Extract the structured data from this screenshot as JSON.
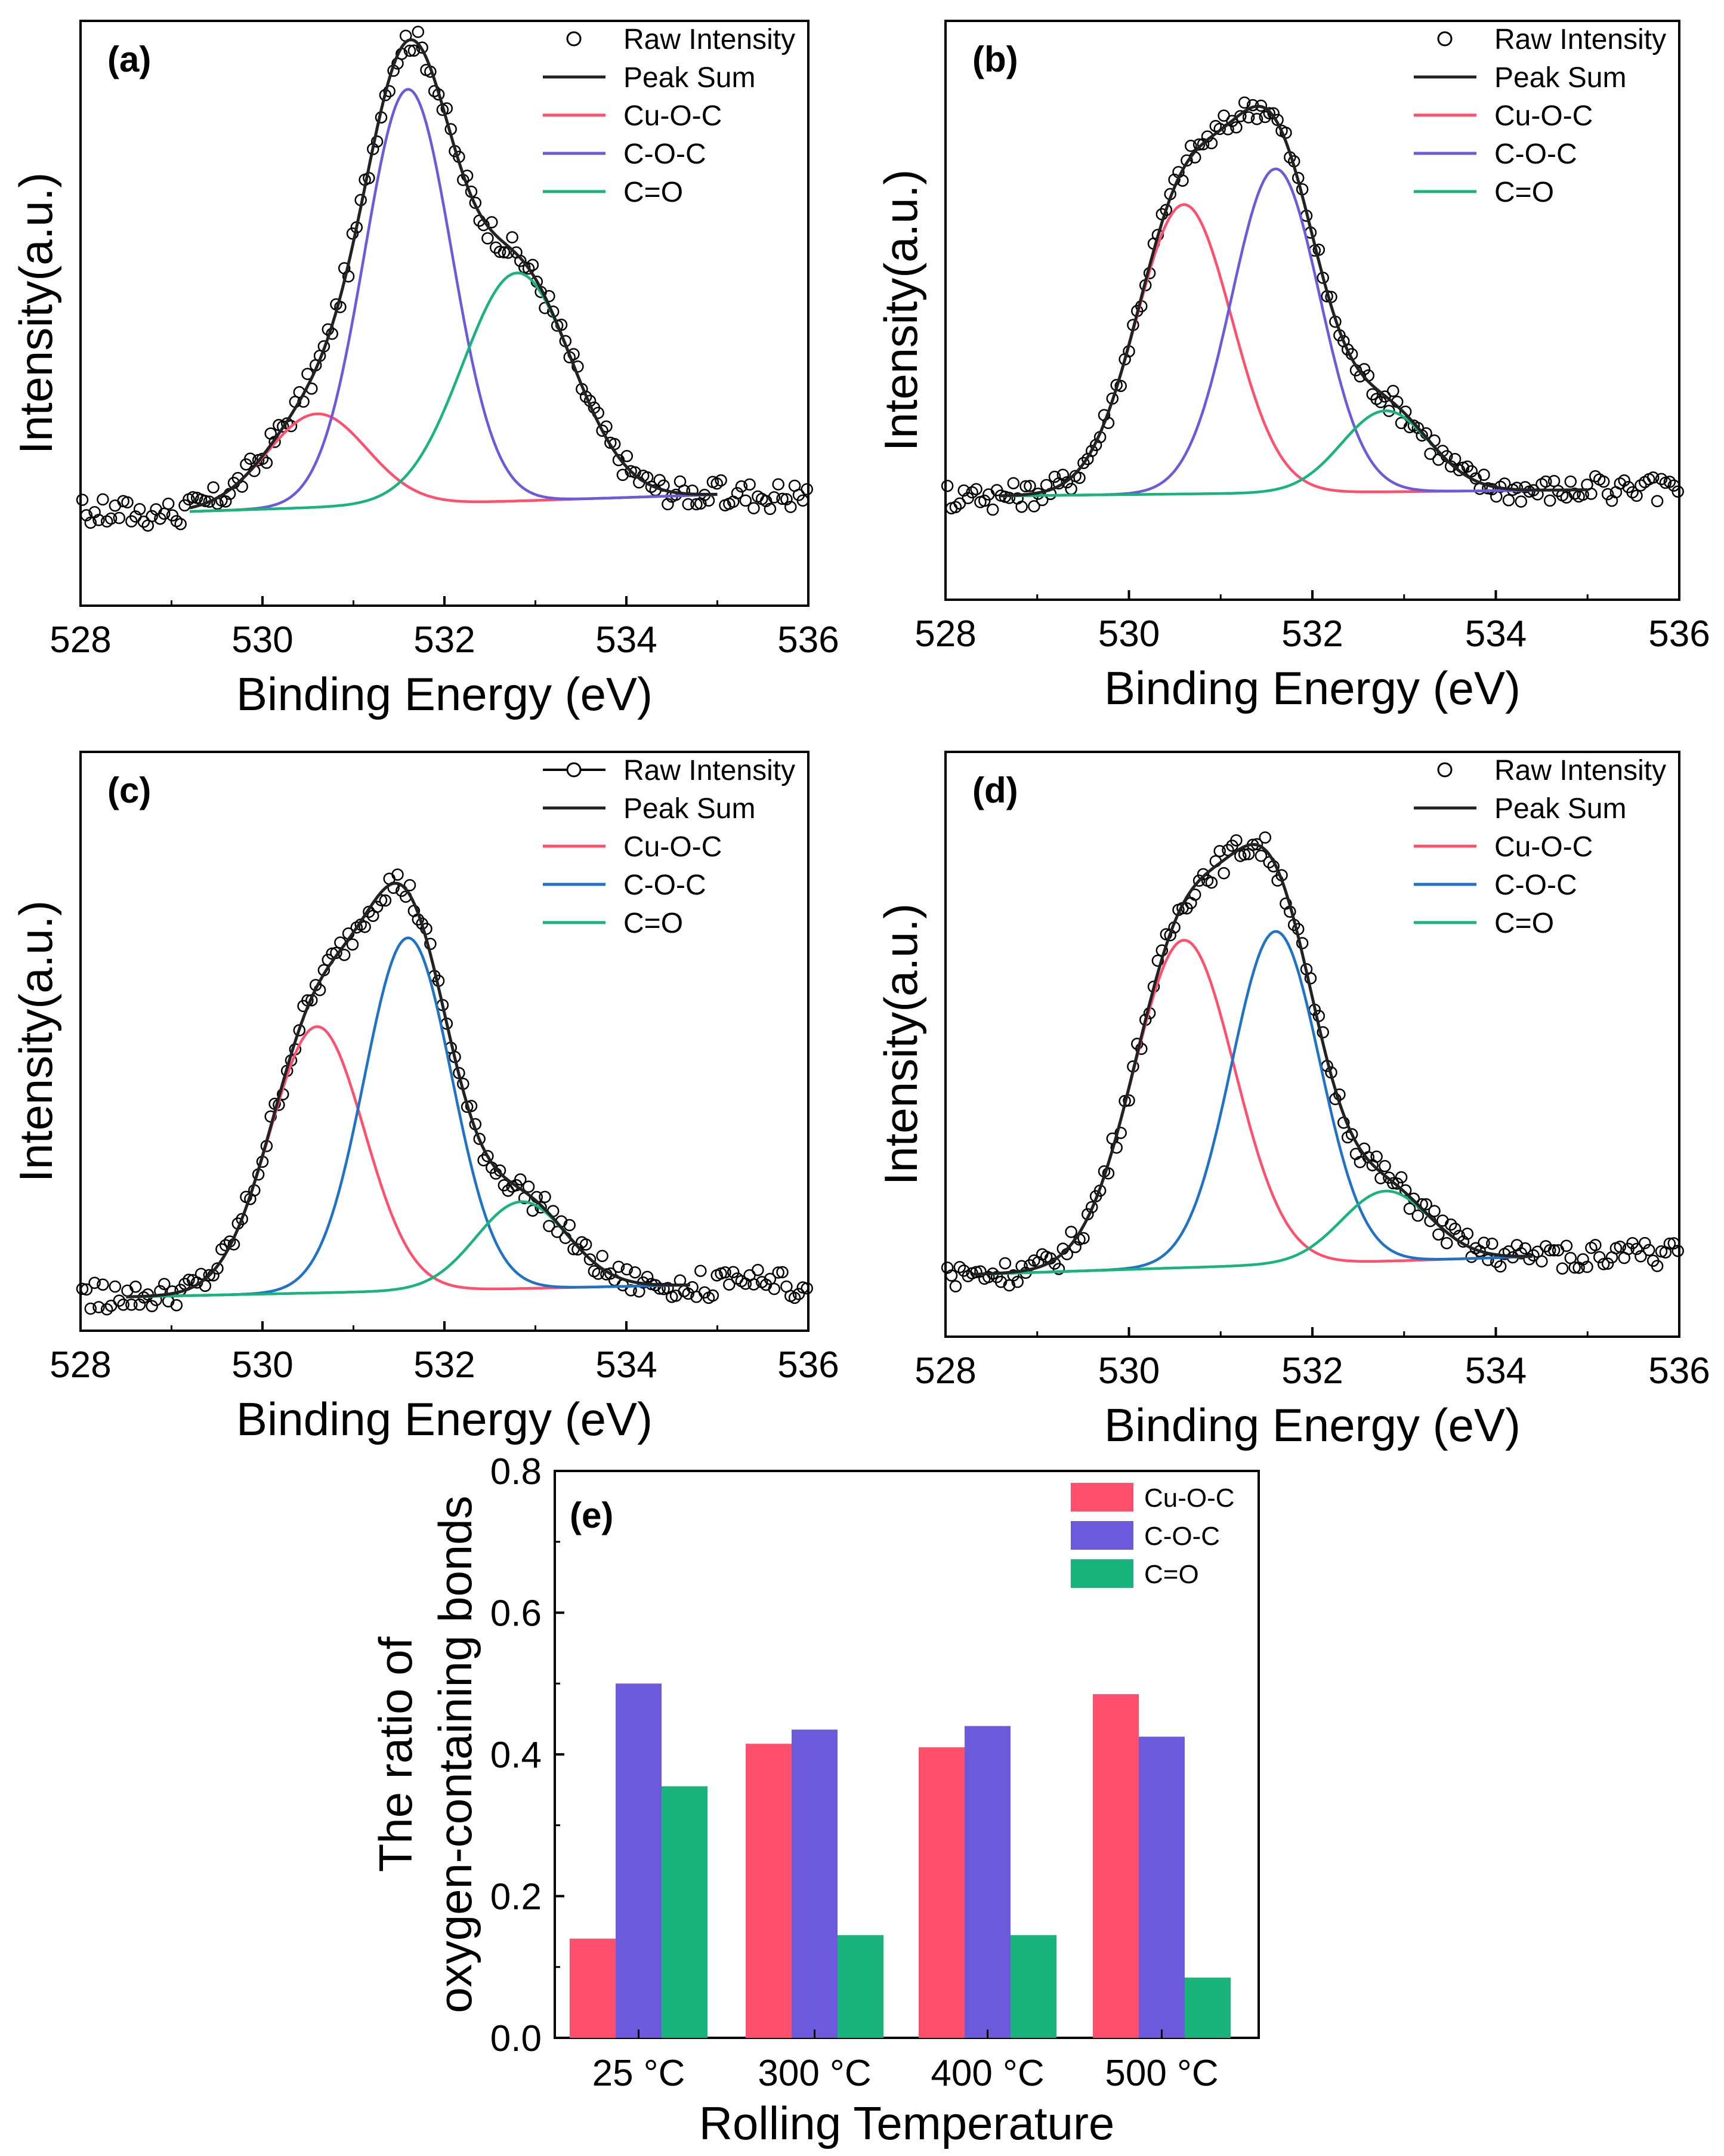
{
  "figure": {
    "colors": {
      "raw": "#000000",
      "peak_sum": "#222222",
      "cu_o_c": "#ff4f6d",
      "c_o_c_ab": "#6b5bdc",
      "c_o_c_cd": "#1f73c6",
      "c_eq_o": "#19b37c"
    }
  },
  "chart_data": [
    {
      "id": "a",
      "type": "line",
      "panel_label": "(a)",
      "xlabel": "Binding Energy (eV)",
      "ylabel": "Intensity(a.u.)",
      "xlim": [
        528,
        536
      ],
      "ylim": [
        0,
        1.0
      ],
      "xticks": [
        528,
        530,
        532,
        534,
        536
      ],
      "legend": [
        "Raw Intensity",
        "Peak Sum",
        "Cu-O-C",
        "C-O-C",
        "C=O"
      ],
      "legend_position": "top-right",
      "raw_range": [
        528,
        536
      ],
      "fit_range": [
        529.2,
        535.0
      ],
      "baseline": {
        "at_529": 0.16,
        "at_535": 0.19
      },
      "components": [
        {
          "name": "Cu-O-C",
          "center": 530.6,
          "amplitude": 0.16,
          "sigma": 0.55
        },
        {
          "name": "C-O-C",
          "center": 531.6,
          "amplitude": 0.71,
          "sigma": 0.48
        },
        {
          "name": "C=O",
          "center": 532.8,
          "amplitude": 0.39,
          "sigma": 0.6
        }
      ]
    },
    {
      "id": "b",
      "type": "line",
      "panel_label": "(b)",
      "xlabel": "Binding Energy (eV)",
      "ylabel": "Intensity(a.u.)",
      "xlim": [
        528,
        536
      ],
      "ylim": [
        0,
        1.0
      ],
      "xticks": [
        528,
        530,
        532,
        534,
        536
      ],
      "legend": [
        "Raw Intensity",
        "Peak Sum",
        "Cu-O-C",
        "C-O-C",
        "C=O"
      ],
      "legend_position": "top-right",
      "raw_range": [
        528,
        536
      ],
      "fit_range": [
        528.6,
        535.0
      ],
      "baseline": {
        "at_529": 0.18,
        "at_535": 0.19
      },
      "components": [
        {
          "name": "Cu-O-C",
          "center": 530.6,
          "amplitude": 0.5,
          "sigma": 0.52
        },
        {
          "name": "C-O-C",
          "center": 531.6,
          "amplitude": 0.56,
          "sigma": 0.48
        },
        {
          "name": "C=O",
          "center": 532.8,
          "amplitude": 0.14,
          "sigma": 0.48
        }
      ]
    },
    {
      "id": "c",
      "type": "line",
      "panel_label": "(c)",
      "xlabel": "Binding Energy (eV)",
      "ylabel": "Intensity(a.u.)",
      "xlim": [
        528,
        536
      ],
      "ylim": [
        0,
        1.0
      ],
      "xticks": [
        528,
        530,
        532,
        534,
        536
      ],
      "legend": [
        "Raw Intensity",
        "Peak Sum",
        "Cu-O-C",
        "C-O-C",
        "C=O"
      ],
      "legend_position": "top-right",
      "raw_range": [
        528,
        536
      ],
      "fit_range": [
        528.5,
        534.7
      ],
      "baseline": {
        "at_529": 0.06,
        "at_535": 0.08
      },
      "components": [
        {
          "name": "Cu-O-C",
          "center": 530.6,
          "amplitude": 0.46,
          "sigma": 0.52
        },
        {
          "name": "C-O-C",
          "center": 531.6,
          "amplitude": 0.61,
          "sigma": 0.48
        },
        {
          "name": "C=O",
          "center": 532.85,
          "amplitude": 0.15,
          "sigma": 0.5
        }
      ]
    },
    {
      "id": "d",
      "type": "line",
      "panel_label": "(d)",
      "xlabel": "Binding Energy (eV)",
      "ylabel": "Intensity(a.u.)",
      "xlim": [
        528,
        536
      ],
      "ylim": [
        0,
        1.0
      ],
      "xticks": [
        528,
        530,
        532,
        534,
        536
      ],
      "legend": [
        "Raw Intensity",
        "Peak Sum",
        "Cu-O-C",
        "C-O-C",
        "C=O"
      ],
      "legend_position": "top-right",
      "raw_range": [
        528,
        536
      ],
      "fit_range": [
        528.3,
        534.4
      ],
      "baseline": {
        "at_529": 0.11,
        "at_535": 0.14
      },
      "components": [
        {
          "name": "Cu-O-C",
          "center": 530.6,
          "amplitude": 0.56,
          "sigma": 0.55
        },
        {
          "name": "C-O-C",
          "center": 531.6,
          "amplitude": 0.57,
          "sigma": 0.48
        },
        {
          "name": "C=O",
          "center": 532.8,
          "amplitude": 0.12,
          "sigma": 0.48
        }
      ]
    },
    {
      "id": "e",
      "type": "bar",
      "panel_label": "(e)",
      "xlabel": "Rolling Temperature",
      "ylabel": [
        "The ratio of",
        "oxygen-containing bonds"
      ],
      "categories": [
        "25 °C",
        "300 °C",
        "400 °C",
        "500 °C"
      ],
      "ylim": [
        0,
        0.8
      ],
      "yticks": [
        0.0,
        0.2,
        0.4,
        0.6,
        0.8
      ],
      "legend_position": "top-right",
      "series": [
        {
          "name": "Cu-O-C",
          "values": [
            0.14,
            0.415,
            0.41,
            0.485
          ]
        },
        {
          "name": "C-O-C",
          "values": [
            0.5,
            0.435,
            0.44,
            0.425
          ]
        },
        {
          "name": "C=O",
          "values": [
            0.355,
            0.145,
            0.145,
            0.085
          ]
        }
      ]
    }
  ]
}
